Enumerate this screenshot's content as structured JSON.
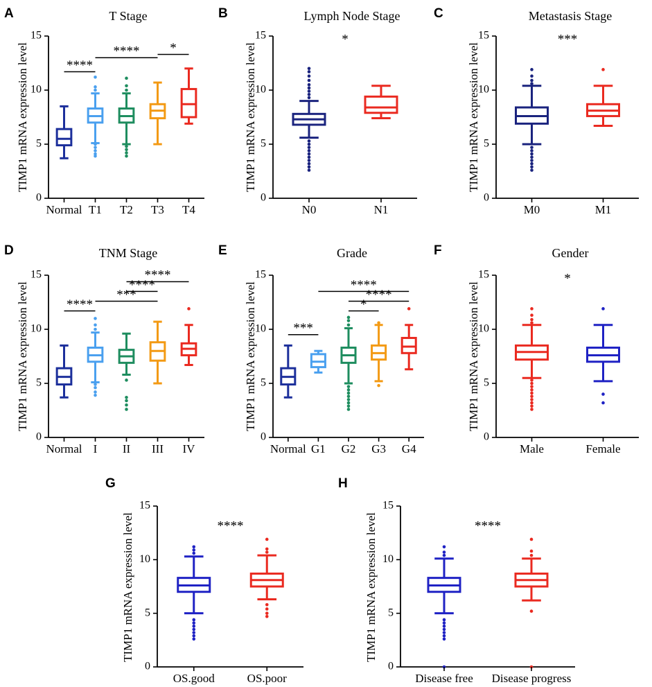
{
  "colors": {
    "dark_blue": "#1c2f9b",
    "navy": "#1a237e",
    "blue": "#1f22c4",
    "light_blue": "#4aa0ef",
    "green": "#1e8d5f",
    "orange": "#f39a14",
    "red": "#ea2a20",
    "axis": "#000000"
  },
  "chart_data": [
    {
      "id": "A",
      "type": "box",
      "letter": "A",
      "title": "T Stage",
      "ylabel": "TIMP1 mRNA expression level",
      "ylim": [
        0,
        15
      ],
      "yticks": [
        0,
        5,
        10,
        15
      ],
      "categories": [
        "Normal",
        "T1",
        "T2",
        "T3",
        "T4"
      ],
      "series": [
        {
          "name": "Normal",
          "color": "dark_blue",
          "whisker_low": 3.7,
          "q1": 4.9,
          "median": 5.5,
          "q3": 6.4,
          "whisker_high": 8.5,
          "outliers": []
        },
        {
          "name": "T1",
          "color": "light_blue",
          "whisker_low": 5.1,
          "q1": 7.0,
          "median": 7.6,
          "q3": 8.3,
          "whisker_high": 9.7,
          "outliers": [
            3.9,
            4.1,
            4.4,
            4.7,
            5.0,
            10.0,
            10.3,
            11.2
          ]
        },
        {
          "name": "T2",
          "color": "green",
          "whisker_low": 5.0,
          "q1": 7.0,
          "median": 7.6,
          "q3": 8.3,
          "whisker_high": 9.7,
          "outliers": [
            3.9,
            4.2,
            4.5,
            4.8,
            10.0,
            10.4,
            11.1
          ]
        },
        {
          "name": "T3",
          "color": "orange",
          "whisker_low": 5.0,
          "q1": 7.4,
          "median": 8.1,
          "q3": 8.7,
          "whisker_high": 10.7,
          "outliers": []
        },
        {
          "name": "T4",
          "color": "red",
          "whisker_low": 6.9,
          "q1": 7.5,
          "median": 8.7,
          "q3": 10.1,
          "whisker_high": 12.0,
          "outliers": []
        }
      ],
      "significance": [
        {
          "from": "Normal",
          "to": "T1",
          "label": "****",
          "y": 11.7
        },
        {
          "from": "T1",
          "to": "T3",
          "label": "****",
          "y": 13.0
        },
        {
          "from": "T3",
          "to": "T4",
          "label": "*",
          "y": 13.3
        }
      ]
    },
    {
      "id": "B",
      "type": "box",
      "letter": "B",
      "title": "Lymph Node Stage",
      "ylabel": "TIMP1 mRNA expression level",
      "ylim": [
        0,
        15
      ],
      "yticks": [
        0,
        5,
        10,
        15
      ],
      "categories": [
        "N0",
        "N1"
      ],
      "series": [
        {
          "name": "N0",
          "color": "navy",
          "whisker_low": 5.6,
          "q1": 6.8,
          "median": 7.3,
          "q3": 7.8,
          "whisker_high": 9.0,
          "outliers": [
            2.6,
            2.9,
            3.2,
            3.5,
            3.8,
            4.1,
            4.4,
            4.7,
            5.0,
            5.3,
            9.3,
            9.6,
            9.9,
            10.2,
            10.5,
            10.9,
            11.3,
            11.7,
            12.0
          ]
        },
        {
          "name": "N1",
          "color": "red",
          "whisker_low": 7.4,
          "q1": 7.9,
          "median": 8.4,
          "q3": 9.4,
          "whisker_high": 10.4,
          "outliers": []
        }
      ],
      "significance": [
        {
          "from": "N0",
          "to": "N1",
          "label": "*",
          "y": null
        }
      ]
    },
    {
      "id": "C",
      "type": "box",
      "letter": "C",
      "title": "Metastasis Stage",
      "ylabel": "TIMP1 mRNA expression level",
      "ylim": [
        0,
        15
      ],
      "yticks": [
        0,
        5,
        10,
        15
      ],
      "categories": [
        "M0",
        "M1"
      ],
      "series": [
        {
          "name": "M0",
          "color": "navy",
          "whisker_low": 5.0,
          "q1": 6.9,
          "median": 7.6,
          "q3": 8.4,
          "whisker_high": 10.4,
          "outliers": [
            2.6,
            2.9,
            3.2,
            3.5,
            3.8,
            4.1,
            4.4,
            4.7,
            10.6,
            10.9,
            11.3,
            11.9
          ]
        },
        {
          "name": "M1",
          "color": "red",
          "whisker_low": 6.7,
          "q1": 7.6,
          "median": 8.1,
          "q3": 8.7,
          "whisker_high": 10.4,
          "outliers": [
            11.9
          ]
        }
      ],
      "significance": [
        {
          "from": "M0",
          "to": "M1",
          "label": "***",
          "y": null
        }
      ]
    },
    {
      "id": "D",
      "type": "box",
      "letter": "D",
      "title": "TNM Stage",
      "ylabel": "TIMP1 mRNA expression level",
      "ylim": [
        0,
        15
      ],
      "yticks": [
        0,
        5,
        10,
        15
      ],
      "categories": [
        "Normal",
        "I",
        "II",
        "III",
        "IV"
      ],
      "series": [
        {
          "name": "Normal",
          "color": "dark_blue",
          "whisker_low": 3.7,
          "q1": 4.9,
          "median": 5.6,
          "q3": 6.4,
          "whisker_high": 8.5,
          "outliers": []
        },
        {
          "name": "I",
          "color": "light_blue",
          "whisker_low": 5.1,
          "q1": 7.0,
          "median": 7.6,
          "q3": 8.3,
          "whisker_high": 9.7,
          "outliers": [
            3.9,
            4.2,
            4.6,
            4.9,
            10.0,
            10.4,
            11.0
          ]
        },
        {
          "name": "II",
          "color": "green",
          "whisker_low": 5.8,
          "q1": 6.9,
          "median": 7.5,
          "q3": 8.1,
          "whisker_high": 9.6,
          "outliers": [
            2.6,
            3.0,
            3.4,
            3.7,
            5.3
          ]
        },
        {
          "name": "III",
          "color": "orange",
          "whisker_low": 5.0,
          "q1": 7.1,
          "median": 8.0,
          "q3": 8.8,
          "whisker_high": 10.7,
          "outliers": []
        },
        {
          "name": "IV",
          "color": "red",
          "whisker_low": 6.7,
          "q1": 7.6,
          "median": 8.2,
          "q3": 8.7,
          "whisker_high": 10.4,
          "outliers": [
            11.9
          ]
        }
      ],
      "significance": [
        {
          "from": "Normal",
          "to": "I",
          "label": "****",
          "y": 11.7
        },
        {
          "from": "I",
          "to": "III",
          "label": "***",
          "y": 12.6
        },
        {
          "from": "II",
          "to": "III",
          "label": "****",
          "y": 13.5
        },
        {
          "from": "II",
          "to": "IV",
          "label": "****",
          "y": 14.4
        }
      ]
    },
    {
      "id": "E",
      "type": "box",
      "letter": "E",
      "title": "Grade",
      "ylabel": "TIMP1 mRNA expression level",
      "ylim": [
        0,
        15
      ],
      "yticks": [
        0,
        5,
        10,
        15
      ],
      "categories": [
        "Normal",
        "G1",
        "G2",
        "G3",
        "G4"
      ],
      "series": [
        {
          "name": "Normal",
          "color": "dark_blue",
          "whisker_low": 3.7,
          "q1": 4.9,
          "median": 5.6,
          "q3": 6.4,
          "whisker_high": 8.5,
          "outliers": []
        },
        {
          "name": "G1",
          "color": "light_blue",
          "whisker_low": 6.0,
          "q1": 6.5,
          "median": 7.0,
          "q3": 7.7,
          "whisker_high": 8.0,
          "outliers": []
        },
        {
          "name": "G2",
          "color": "green",
          "whisker_low": 5.0,
          "q1": 6.9,
          "median": 7.6,
          "q3": 8.3,
          "whisker_high": 10.1,
          "outliers": [
            2.6,
            2.9,
            3.2,
            3.5,
            3.8,
            4.1,
            4.4,
            4.7,
            10.4,
            10.8,
            11.1
          ]
        },
        {
          "name": "G3",
          "color": "orange",
          "whisker_low": 5.2,
          "q1": 7.2,
          "median": 7.8,
          "q3": 8.5,
          "whisker_high": 10.4,
          "outliers": [
            4.8,
            10.6
          ]
        },
        {
          "name": "G4",
          "color": "red",
          "whisker_low": 6.3,
          "q1": 7.8,
          "median": 8.4,
          "q3": 9.2,
          "whisker_high": 10.4,
          "outliers": [
            11.9
          ]
        }
      ],
      "significance": [
        {
          "from": "Normal",
          "to": "G1",
          "label": "***",
          "y": 9.5
        },
        {
          "from": "G2",
          "to": "G3",
          "label": "*",
          "y": 11.7
        },
        {
          "from": "G2",
          "to": "G4",
          "label": "****",
          "y": 12.6
        },
        {
          "from": "G1",
          "to": "G4",
          "label": "****",
          "y": 13.5
        }
      ]
    },
    {
      "id": "F",
      "type": "box",
      "letter": "F",
      "title": "Gender",
      "ylabel": "TIMP1 mRNA expression level",
      "ylim": [
        0,
        15
      ],
      "yticks": [
        0,
        5,
        10,
        15
      ],
      "categories": [
        "Male",
        "Female"
      ],
      "series": [
        {
          "name": "Male",
          "color": "red",
          "whisker_low": 5.5,
          "q1": 7.2,
          "median": 7.9,
          "q3": 8.5,
          "whisker_high": 10.4,
          "outliers": [
            2.6,
            2.9,
            3.2,
            3.5,
            3.8,
            4.1,
            4.4,
            4.7,
            5.0,
            5.3,
            10.6,
            10.9,
            11.3,
            11.9
          ]
        },
        {
          "name": "Female",
          "color": "blue",
          "whisker_low": 5.2,
          "q1": 7.0,
          "median": 7.6,
          "q3": 8.3,
          "whisker_high": 10.4,
          "outliers": [
            3.2,
            4.0,
            11.9
          ]
        }
      ],
      "significance": [
        {
          "from": "Male",
          "to": "Female",
          "label": "*",
          "y": null
        }
      ]
    },
    {
      "id": "G",
      "type": "box",
      "letter": "G",
      "title": "",
      "ylabel": "TIMP1 mRNA expression level",
      "ylim": [
        0,
        15
      ],
      "yticks": [
        0,
        5,
        10,
        15
      ],
      "categories": [
        "OS.good",
        "OS.poor"
      ],
      "series": [
        {
          "name": "OS.good",
          "color": "blue",
          "whisker_low": 5.0,
          "q1": 7.0,
          "median": 7.6,
          "q3": 8.3,
          "whisker_high": 10.3,
          "outliers": [
            2.6,
            2.9,
            3.2,
            3.5,
            3.8,
            4.1,
            4.4,
            10.6,
            10.9,
            11.2
          ]
        },
        {
          "name": "OS.poor",
          "color": "red",
          "whisker_low": 6.3,
          "q1": 7.5,
          "median": 8.1,
          "q3": 8.7,
          "whisker_high": 10.4,
          "outliers": [
            4.7,
            5.0,
            5.4,
            5.8,
            10.7,
            11.0,
            11.9
          ]
        }
      ],
      "significance": [
        {
          "from": "OS.good",
          "to": "OS.poor",
          "label": "****",
          "y": null
        }
      ]
    },
    {
      "id": "H",
      "type": "box",
      "letter": "H",
      "title": "",
      "ylabel": "TIMP1 mRNA expression level",
      "ylim": [
        0,
        15
      ],
      "yticks": [
        0,
        5,
        10,
        15
      ],
      "categories": [
        "Disease free",
        "Disease progress"
      ],
      "series": [
        {
          "name": "Disease free",
          "color": "blue",
          "whisker_low": 5.0,
          "q1": 7.0,
          "median": 7.6,
          "q3": 8.3,
          "whisker_high": 10.1,
          "outliers": [
            0.0,
            2.6,
            2.9,
            3.2,
            3.5,
            3.8,
            4.1,
            4.4,
            10.4,
            10.7,
            11.2
          ]
        },
        {
          "name": "Disease progress",
          "color": "red",
          "whisker_low": 6.2,
          "q1": 7.5,
          "median": 8.1,
          "q3": 8.7,
          "whisker_high": 10.1,
          "outliers": [
            0.0,
            5.2,
            10.4,
            10.8,
            11.9
          ]
        }
      ],
      "significance": [
        {
          "from": "Disease free",
          "to": "Disease progress",
          "label": "****",
          "y": null
        }
      ]
    }
  ]
}
